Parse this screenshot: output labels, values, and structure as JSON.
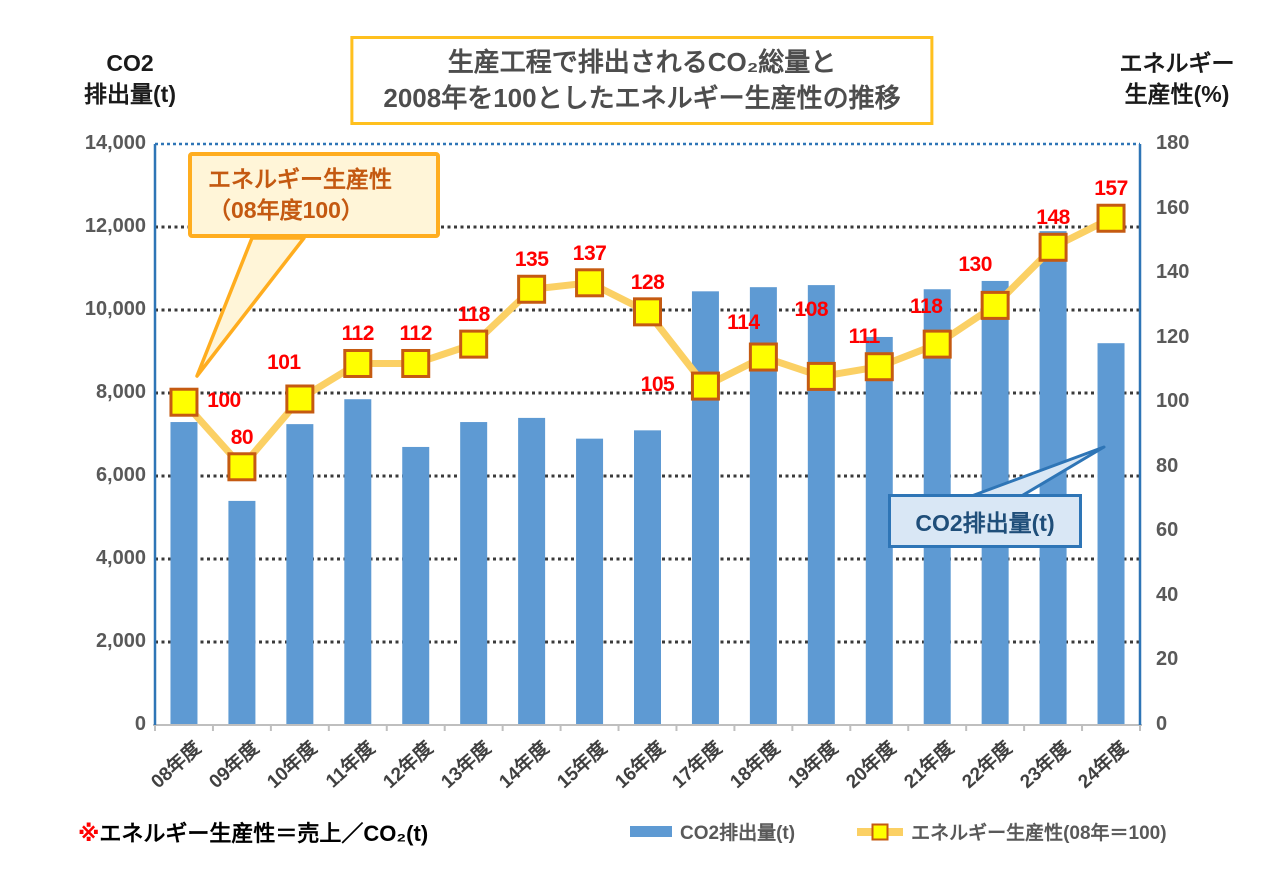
{
  "title": {
    "line1": "生産工程で排出されるCO₂総量と",
    "line2": "2008年を100としたエネルギー生産性の推移"
  },
  "axes": {
    "left_title_line1": "CO2",
    "left_title_line2": "排出量(t)",
    "right_title_line1": "エネルギー",
    "right_title_line2": "生産性(%)"
  },
  "annotations": {
    "line_callout_line1": "エネルギー生産性",
    "line_callout_line2": "（08年度100）",
    "bar_callout": "CO2排出量(t)"
  },
  "footnote": {
    "mark": "※",
    "text": "エネルギー生産性＝売上／CO₂(t)"
  },
  "legend": {
    "bar_label": "CO2排出量(t)",
    "line_label": "エネルギー生産性(08年＝100)"
  },
  "chart_data": {
    "type": "combo-bar-line",
    "title": "生産工程で排出されるCO₂総量と2008年を100としたエネルギー生産性の推移",
    "categories": [
      "08年度",
      "09年度",
      "10年度",
      "11年度",
      "12年度",
      "13年度",
      "14年度",
      "15年度",
      "16年度",
      "17年度",
      "18年度",
      "19年度",
      "20年度",
      "21年度",
      "22年度",
      "23年度",
      "24年度"
    ],
    "series": [
      {
        "name": "CO2排出量(t)",
        "type": "bar",
        "axis": "left",
        "values": [
          7300,
          5400,
          7250,
          7850,
          6700,
          7300,
          7400,
          6900,
          7100,
          10450,
          10550,
          10600,
          9350,
          10500,
          10700,
          11900,
          9200
        ]
      },
      {
        "name": "エネルギー生産性(08年＝100)",
        "type": "line",
        "axis": "right",
        "values": [
          100,
          80,
          101,
          112,
          112,
          118,
          135,
          137,
          128,
          105,
          114,
          108,
          111,
          118,
          130,
          148,
          157
        ]
      }
    ],
    "left_axis": {
      "title": "CO2排出量(t)",
      "min": 0,
      "max": 14000,
      "tick_interval": 2000,
      "tick_labels": [
        "14,000",
        "12,000",
        "10,000",
        "8,000",
        "6,000",
        "4,000",
        "2,000",
        "0"
      ]
    },
    "right_axis": {
      "title": "エネルギー生産性(%)",
      "min": 0,
      "max": 180,
      "tick_interval": 20,
      "tick_labels": [
        "180",
        "160",
        "140",
        "120",
        "100",
        "80",
        "60",
        "40",
        "20",
        "0"
      ]
    },
    "grid": "horizontal dotted lines every 2000 (left axis)",
    "legend_position": "bottom",
    "colors": {
      "bar": "#5E9AD3",
      "line": "#FBD064",
      "marker_fill": "#FFFF00",
      "marker_border": "#C55A11",
      "data_label": "#FF0000",
      "gridline": "#3A3A3A",
      "frame": "#2E75B6",
      "baseline": "#BFBFBF",
      "title_box_border": "#FFC01E",
      "title_text": "#4D4D4D",
      "axis_tick_text": "#595959",
      "line_callout_bg": "#FFF5D8",
      "line_callout_border": "#FFAD1F",
      "line_callout_text": "#C45911",
      "bar_callout_bg": "#D9E7F5",
      "bar_callout_border": "#2E75B6",
      "bar_callout_text": "#1F4E79"
    }
  }
}
